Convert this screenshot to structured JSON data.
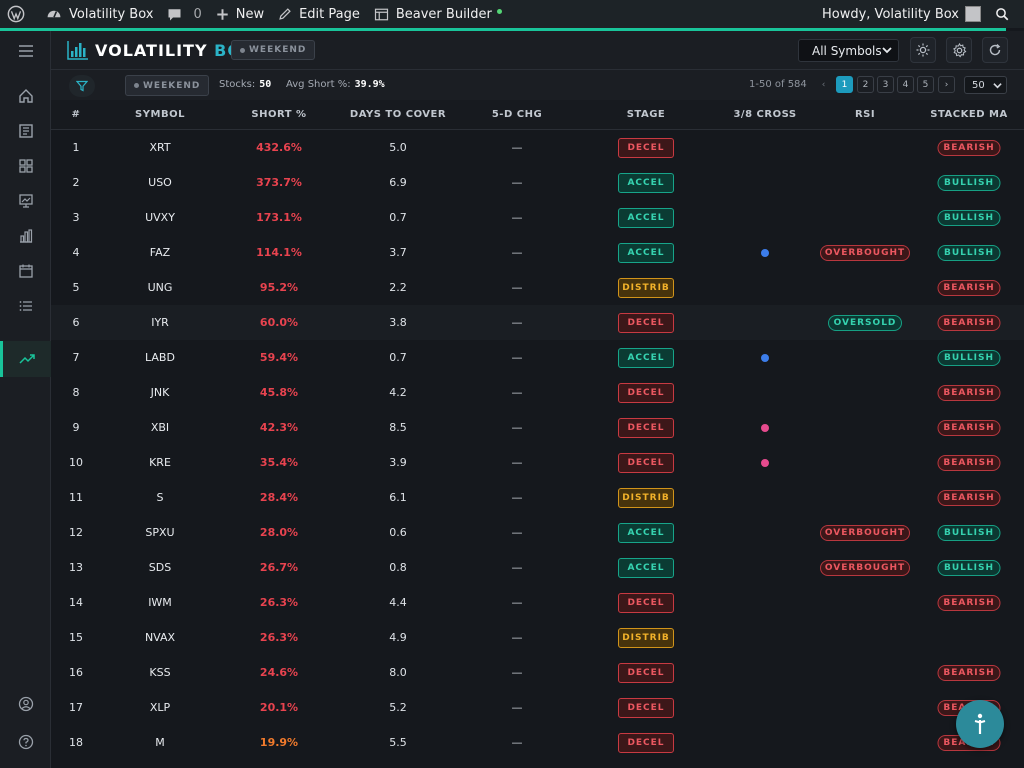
{
  "adminbar": {
    "site_name": "Volatility Box",
    "comments_count": "0",
    "new_label": "New",
    "edit_label": "Edit Page",
    "builder_label": "Beaver Builder",
    "howdy": "Howdy, Volatility Box"
  },
  "header": {
    "logo_main": "VOLATILITY ",
    "logo_accent": "BOX",
    "weekend_label": "WEEKEND",
    "symbol_select": "All Symbols"
  },
  "toolbar": {
    "weekend_label": "WEEKEND",
    "stocks_label": "Stocks:",
    "stocks_value": "50",
    "avg_label": "Avg Short %:",
    "avg_value": "39.9%",
    "range": "1-50 of 584",
    "prev": "‹",
    "next": "›",
    "pages": [
      "1",
      "2",
      "3",
      "4",
      "5"
    ],
    "current_page": "1",
    "per_page": "50"
  },
  "table": {
    "headers": [
      "#",
      "SYMBOL",
      "SHORT %",
      "DAYS TO COVER",
      "5-D CHG",
      "STAGE",
      "3/8 CROSS",
      "RSI",
      "STACKED MA"
    ],
    "rows": [
      {
        "n": "1",
        "sym": "XRT",
        "short": "432.6%",
        "dtc": "5.0",
        "chg": "—",
        "stage": "DECEL",
        "cross": "",
        "rsi": "",
        "ma": "BEARISH"
      },
      {
        "n": "2",
        "sym": "USO",
        "short": "373.7%",
        "dtc": "6.9",
        "chg": "—",
        "stage": "ACCEL",
        "cross": "",
        "rsi": "",
        "ma": "BULLISH"
      },
      {
        "n": "3",
        "sym": "UVXY",
        "short": "173.1%",
        "dtc": "0.7",
        "chg": "—",
        "stage": "ACCEL",
        "cross": "",
        "rsi": "",
        "ma": "BULLISH"
      },
      {
        "n": "4",
        "sym": "FAZ",
        "short": "114.1%",
        "dtc": "3.7",
        "chg": "—",
        "stage": "ACCEL",
        "cross": "blue",
        "rsi": "OVERBOUGHT",
        "ma": "BULLISH"
      },
      {
        "n": "5",
        "sym": "UNG",
        "short": "95.2%",
        "dtc": "2.2",
        "chg": "—",
        "stage": "DISTRIB",
        "cross": "",
        "rsi": "",
        "ma": "BEARISH"
      },
      {
        "n": "6",
        "sym": "IYR",
        "short": "60.0%",
        "dtc": "3.8",
        "chg": "—",
        "stage": "DECEL",
        "cross": "",
        "rsi": "OVERSOLD",
        "ma": "BEARISH"
      },
      {
        "n": "7",
        "sym": "LABD",
        "short": "59.4%",
        "dtc": "0.7",
        "chg": "—",
        "stage": "ACCEL",
        "cross": "blue",
        "rsi": "",
        "ma": "BULLISH"
      },
      {
        "n": "8",
        "sym": "JNK",
        "short": "45.8%",
        "dtc": "4.2",
        "chg": "—",
        "stage": "DECEL",
        "cross": "",
        "rsi": "",
        "ma": "BEARISH"
      },
      {
        "n": "9",
        "sym": "XBI",
        "short": "42.3%",
        "dtc": "8.5",
        "chg": "—",
        "stage": "DECEL",
        "cross": "pink",
        "rsi": "",
        "ma": "BEARISH"
      },
      {
        "n": "10",
        "sym": "KRE",
        "short": "35.4%",
        "dtc": "3.9",
        "chg": "—",
        "stage": "DECEL",
        "cross": "pink",
        "rsi": "",
        "ma": "BEARISH"
      },
      {
        "n": "11",
        "sym": "S",
        "short": "28.4%",
        "dtc": "6.1",
        "chg": "—",
        "stage": "DISTRIB",
        "cross": "",
        "rsi": "",
        "ma": "BEARISH"
      },
      {
        "n": "12",
        "sym": "SPXU",
        "short": "28.0%",
        "dtc": "0.6",
        "chg": "—",
        "stage": "ACCEL",
        "cross": "",
        "rsi": "OVERBOUGHT",
        "ma": "BULLISH"
      },
      {
        "n": "13",
        "sym": "SDS",
        "short": "26.7%",
        "dtc": "0.8",
        "chg": "—",
        "stage": "ACCEL",
        "cross": "",
        "rsi": "OVERBOUGHT",
        "ma": "BULLISH"
      },
      {
        "n": "14",
        "sym": "IWM",
        "short": "26.3%",
        "dtc": "4.4",
        "chg": "—",
        "stage": "DECEL",
        "cross": "",
        "rsi": "",
        "ma": "BEARISH"
      },
      {
        "n": "15",
        "sym": "NVAX",
        "short": "26.3%",
        "dtc": "4.9",
        "chg": "—",
        "stage": "DISTRIB",
        "cross": "",
        "rsi": "",
        "ma": ""
      },
      {
        "n": "16",
        "sym": "KSS",
        "short": "24.6%",
        "dtc": "8.0",
        "chg": "—",
        "stage": "DECEL",
        "cross": "",
        "rsi": "",
        "ma": "BEARISH"
      },
      {
        "n": "17",
        "sym": "XLP",
        "short": "20.1%",
        "dtc": "5.2",
        "chg": "—",
        "stage": "DECEL",
        "cross": "",
        "rsi": "",
        "ma": "BEARISH"
      },
      {
        "n": "18",
        "sym": "M",
        "short": "19.9%",
        "dtc": "5.5",
        "chg": "—",
        "stage": "DECEL",
        "cross": "",
        "rsi": "",
        "ma": "BEARISH"
      }
    ]
  },
  "colors": {
    "accent": "#19c49a",
    "brand": "#2bb3c7",
    "bearish": "#eb5760",
    "bullish": "#35d2af",
    "distrib": "#f2b22a",
    "short_high": "#e8434f",
    "short_low": "#f17a2c"
  },
  "icons": {
    "sidebar": [
      "menu-icon",
      "home-icon",
      "newspaper-icon",
      "grid-icon",
      "presentation-icon",
      "bar-chart-icon",
      "calendar-icon",
      "list-icon",
      "trending-up-icon",
      "user-circle-icon",
      "help-circle-icon"
    ],
    "fab": "accessibility-icon"
  }
}
